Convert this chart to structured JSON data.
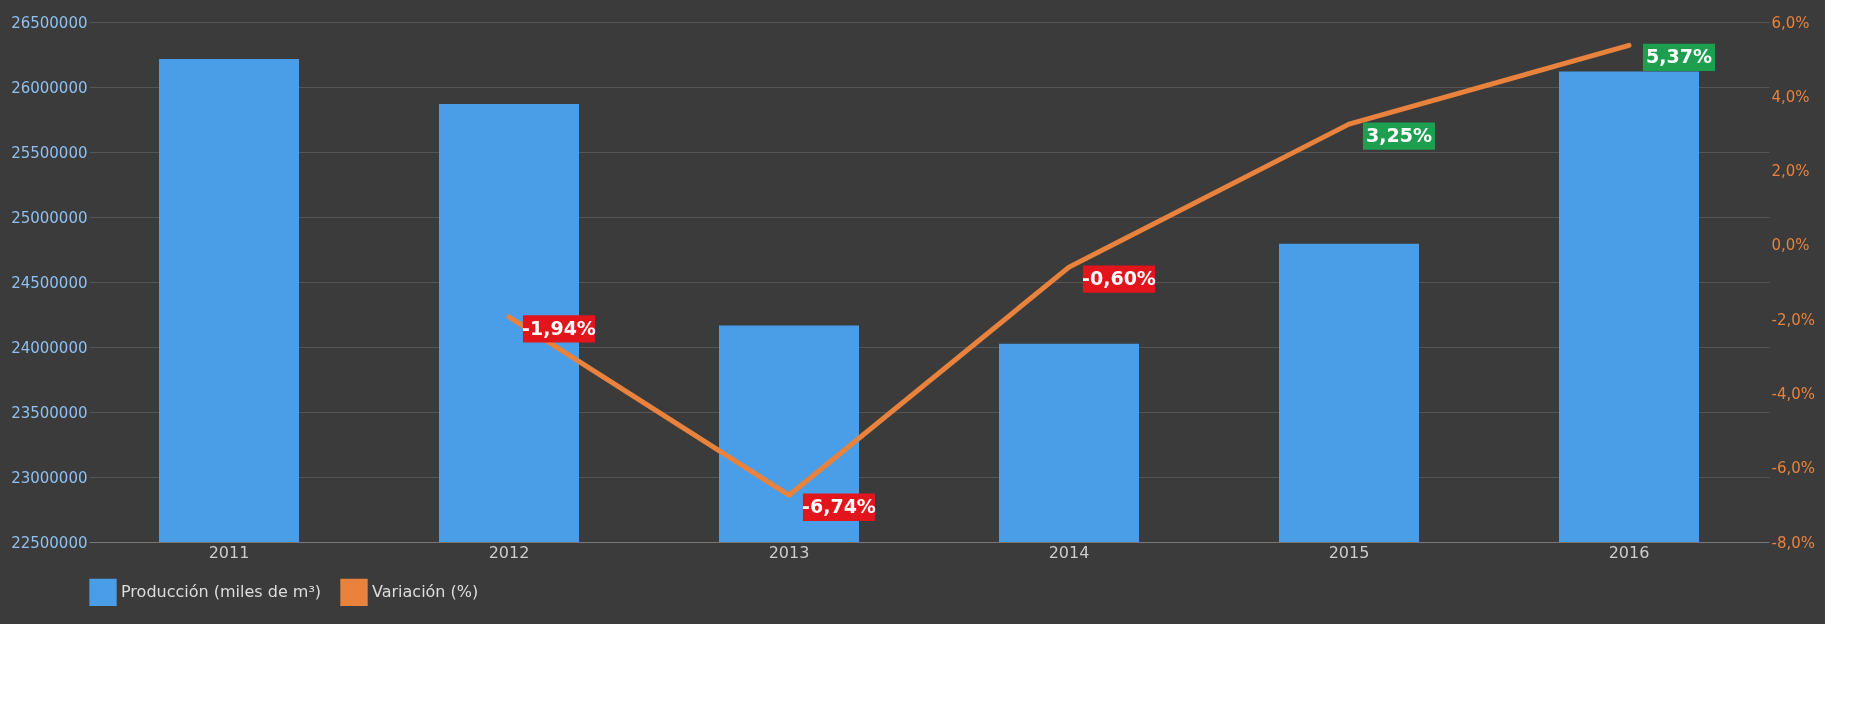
{
  "chart_data": {
    "type": "bar",
    "categories": [
      "2011",
      "2012",
      "2013",
      "2014",
      "2015",
      "2016"
    ],
    "series": [
      {
        "name": "Producción (miles de m³)",
        "color": "#4a9ee8",
        "values": [
          26215000,
          25870000,
          24165000,
          24025000,
          24795000,
          26120000
        ]
      },
      {
        "name": "Variación (%)",
        "type": "line",
        "axis": "y2",
        "color": "#e8823c",
        "values": [
          null,
          -1.94,
          -6.74,
          -0.6,
          3.25,
          5.37
        ],
        "value_labels": [
          null,
          "-1,94%",
          "-6,74%",
          "-0,60%",
          "3,25%",
          "5,37%"
        ]
      }
    ],
    "ylim": [
      22500000,
      26500000
    ],
    "yticks": [
      22500000,
      23000000,
      23500000,
      24000000,
      24500000,
      25000000,
      25500000,
      26000000,
      26500000
    ],
    "y2lim": [
      -8,
      6
    ],
    "y2ticks": [
      {
        "value": -8,
        "label": "-8,0%"
      },
      {
        "value": -6,
        "label": "-6,0%"
      },
      {
        "value": -4,
        "label": "-4,0%"
      },
      {
        "value": -2,
        "label": "-2,0%"
      },
      {
        "value": 0,
        "label": "0,0%"
      },
      {
        "value": 2,
        "label": "2,0%"
      },
      {
        "value": 4,
        "label": "4,0%"
      },
      {
        "value": 6,
        "label": "6,0%"
      }
    ],
    "grid": "y",
    "legend": "bottom"
  }
}
